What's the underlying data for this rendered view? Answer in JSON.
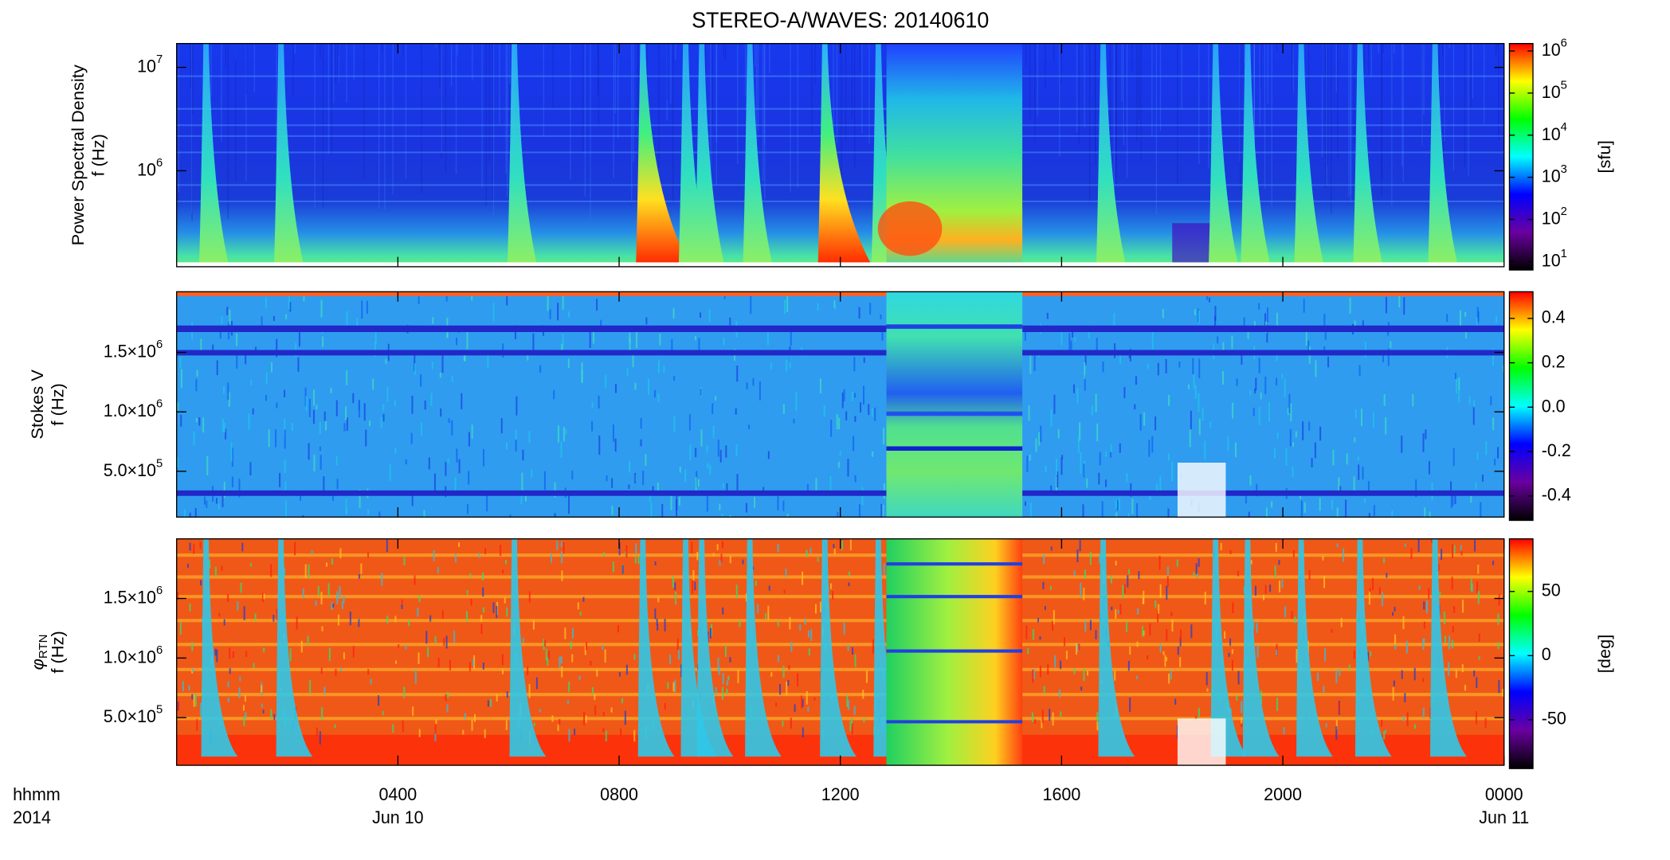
{
  "chart_data": [
    {
      "type": "spectrogram",
      "title": "STEREO-A/WAVES: 20140610",
      "ylabel": [
        "Power Spectral Density",
        "f (Hz)"
      ],
      "yscale": "log",
      "ylim": [
        118000,
        17000000
      ],
      "yticks": [
        {
          "value": 1000000,
          "label": "10",
          "sup": "6"
        },
        {
          "value": 10000000,
          "label": "10",
          "sup": "7"
        }
      ],
      "xlim": [
        0,
        24
      ],
      "xtick_marks": [
        4,
        8,
        12,
        16,
        20
      ],
      "colormap": [
        "#000000",
        "#6a00a0",
        "#0000ff",
        "#00ffff",
        "#00ff00",
        "#ffff00",
        "#ff0000"
      ],
      "colorbar": {
        "scale": "log",
        "lim": [
          6.3,
          1500000
        ],
        "label": "[sfu]",
        "ticks": [
          {
            "value": 10,
            "label": "10",
            "sup": "1"
          },
          {
            "value": 100,
            "label": "10",
            "sup": "2"
          },
          {
            "value": 1000,
            "label": "10",
            "sup": "3"
          },
          {
            "value": 10000,
            "label": "10",
            "sup": "4"
          },
          {
            "value": 100000,
            "label": "10",
            "sup": "5"
          },
          {
            "value": 1000000,
            "label": "10",
            "sup": "6"
          }
        ]
      }
    },
    {
      "type": "spectrogram",
      "ylabel": [
        "Stokes V",
        "f (Hz)"
      ],
      "yscale": "linear",
      "ylim": [
        115000,
        2010000
      ],
      "yticks": [
        {
          "value": 500000,
          "label": "5.0×10",
          "sup": "5"
        },
        {
          "value": 1000000,
          "label": "1.0×10",
          "sup": "6"
        },
        {
          "value": 1500000,
          "label": "1.5×10",
          "sup": "6"
        }
      ],
      "xlim": [
        0,
        24
      ],
      "xtick_marks": [
        4,
        8,
        12,
        16,
        20
      ],
      "colormap": [
        "#000000",
        "#6a00a0",
        "#0000ff",
        "#00ffff",
        "#00ff00",
        "#ffff00",
        "#ff0000"
      ],
      "colorbar": {
        "scale": "linear",
        "lim": [
          -0.51,
          0.52
        ],
        "ticks": [
          -0.4,
          -0.2,
          {
            "value": 0,
            "label": "0.0"
          },
          0.2,
          0.4
        ]
      }
    },
    {
      "type": "spectrogram",
      "ylabel_symbol": "φ",
      "ylabel_symbol_sub": "RTN",
      "ylabel": [
        "f (Hz)"
      ],
      "yscale": "linear",
      "ylim": [
        100000,
        2000000
      ],
      "yticks": [
        {
          "value": 500000,
          "label": "5.0×10",
          "sup": "5"
        },
        {
          "value": 1000000,
          "label": "1.0×10",
          "sup": "6"
        },
        {
          "value": 1500000,
          "label": "1.5×10",
          "sup": "6"
        }
      ],
      "xlim": [
        0,
        24
      ],
      "xlabel": [
        "hhmm",
        "2014"
      ],
      "xticks": [
        {
          "value": 4,
          "label": "0400",
          "date": "Jun 10"
        },
        {
          "value": 8,
          "label": "0800"
        },
        {
          "value": 12,
          "label": "1200"
        },
        {
          "value": 16,
          "label": "1600"
        },
        {
          "value": 20,
          "label": "2000"
        },
        {
          "value": 24,
          "label": "0000",
          "date": "Jun 11"
        }
      ],
      "colormap": [
        "#000000",
        "#6a00a0",
        "#0000ff",
        "#00ffff",
        "#00ff00",
        "#ffff00",
        "#ff0000"
      ],
      "colorbar": {
        "scale": "linear",
        "lim": [
          -88,
          91
        ],
        "label": "[deg]",
        "ticks": [
          -50,
          0,
          50
        ]
      }
    }
  ]
}
